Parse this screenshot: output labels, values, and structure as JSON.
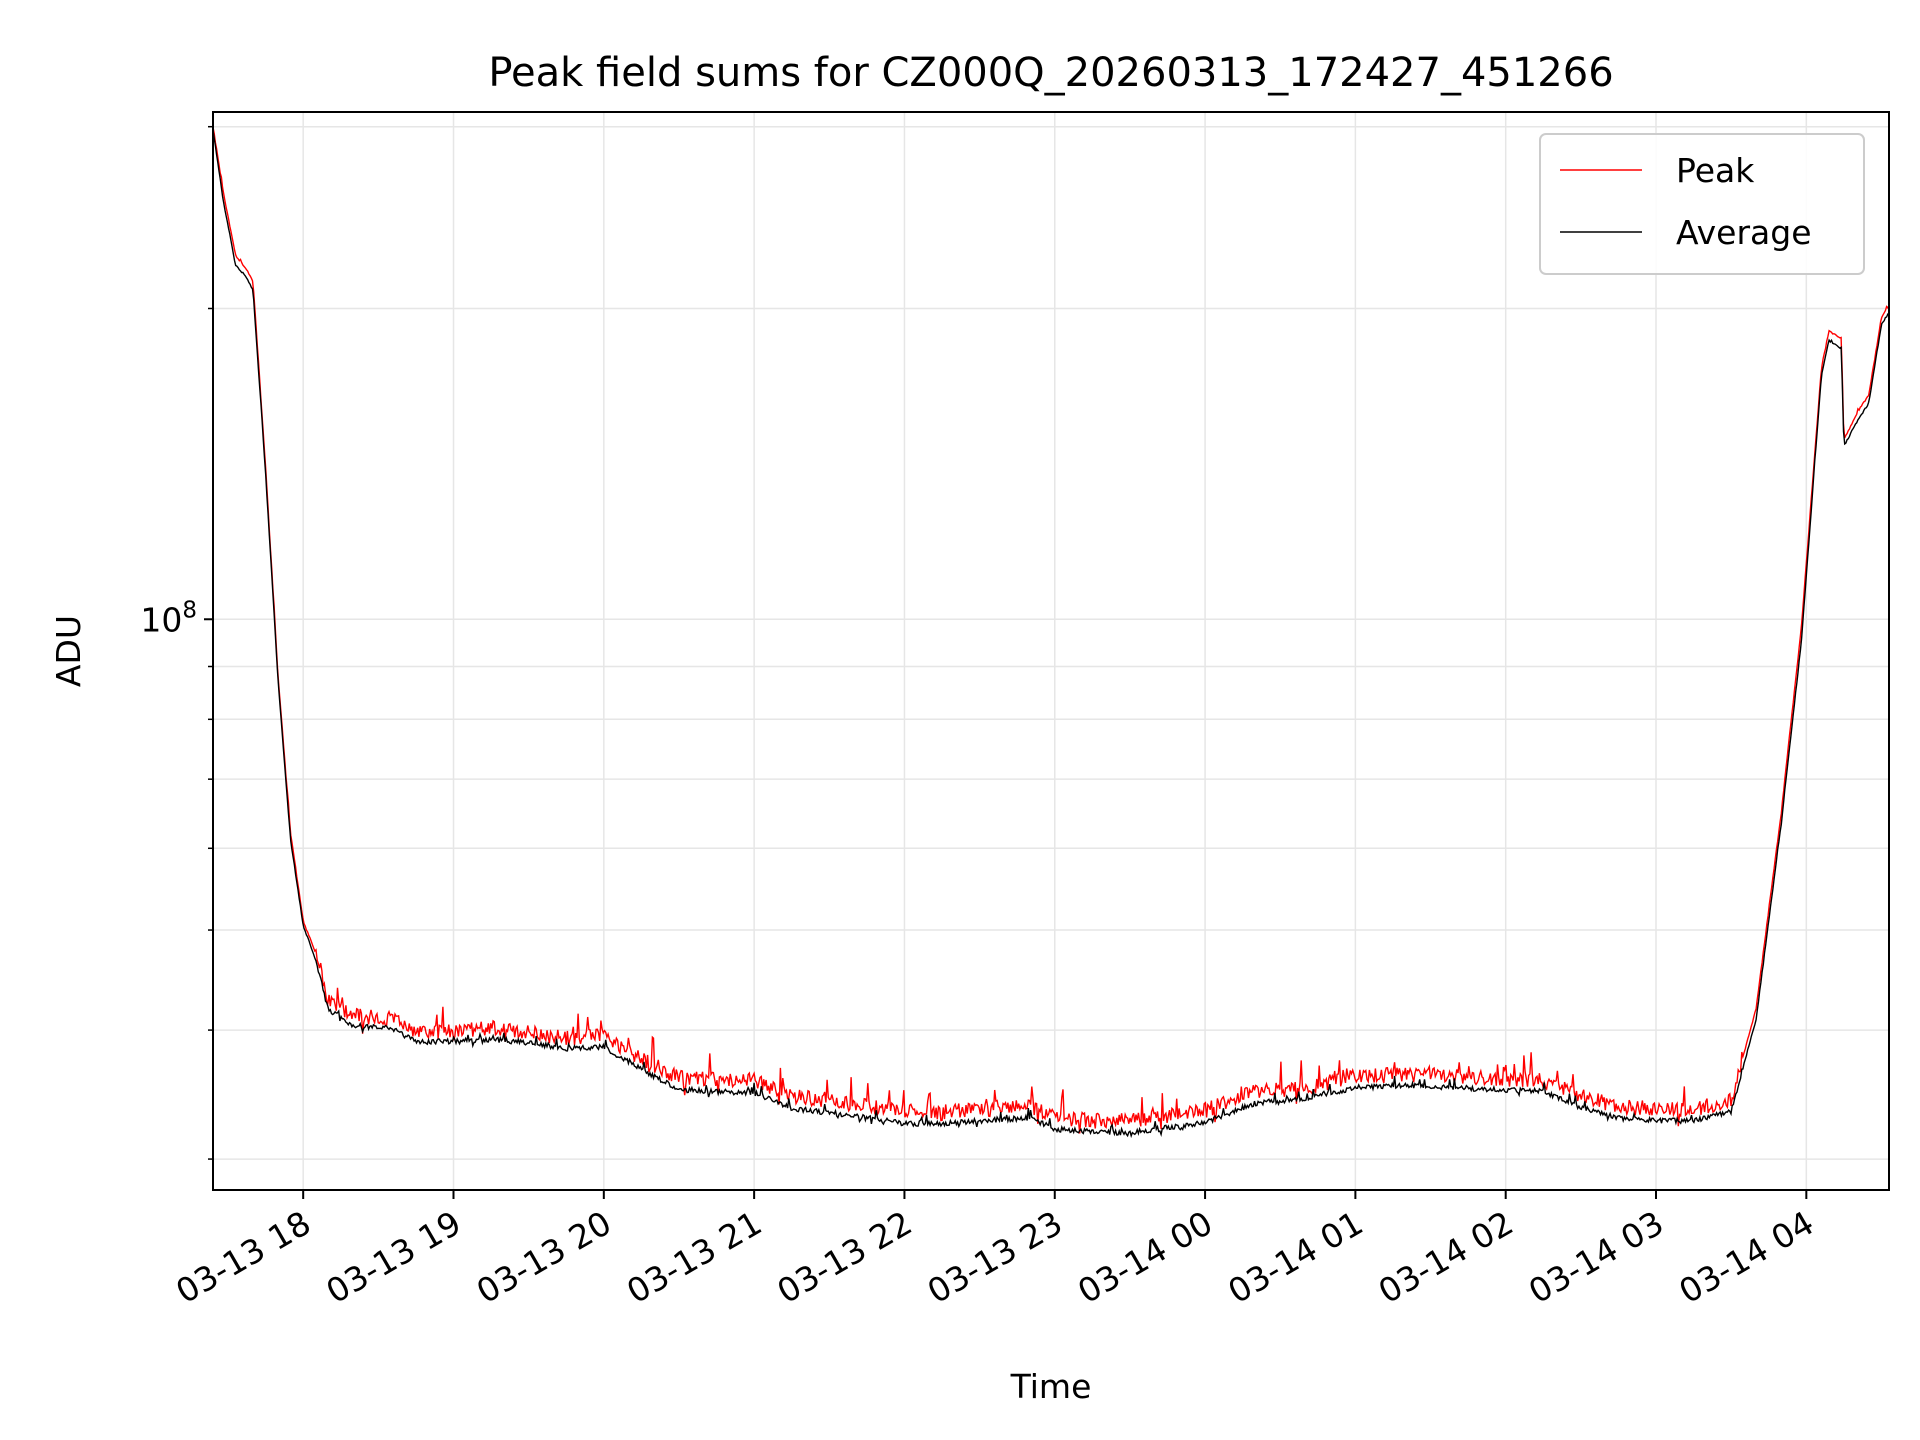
{
  "chart_data": {
    "type": "line",
    "title": "Peak field sums for CZ000Q_20260313_172427_451266",
    "xlabel": "Time",
    "ylabel": "ADU",
    "yscale": "log",
    "xlim": [
      "2026-03-13 17:24",
      "2026-03-14 04:33"
    ],
    "ylim": [
      28000000,
      310000000
    ],
    "x_ticks": [
      "03-13 18",
      "03-13 19",
      "03-13 20",
      "03-13 21",
      "03-13 22",
      "03-13 23",
      "03-14 00",
      "03-14 01",
      "03-14 02",
      "03-14 03",
      "03-14 04"
    ],
    "y_ticks": [
      {
        "value": 100000000,
        "base": "10",
        "exp": "8"
      }
    ],
    "y_minor_ticks": [
      30000000,
      40000000,
      50000000,
      60000000,
      70000000,
      80000000,
      90000000,
      200000000,
      300000000
    ],
    "grid": true,
    "legend": {
      "position": "top-right",
      "entries": [
        "Peak",
        "Average"
      ]
    },
    "colors": {
      "Peak": "#ff0000",
      "Average": "#000000",
      "grid": "#e6e6e6"
    },
    "series": [
      {
        "name": "Peak",
        "points": [
          [
            "2026-03-13 17:24",
            300000000
          ],
          [
            "2026-03-13 17:28",
            260000000
          ],
          [
            "2026-03-13 17:33",
            225000000
          ],
          [
            "2026-03-13 17:37",
            219000000
          ],
          [
            "2026-03-13 17:40",
            212000000
          ],
          [
            "2026-03-13 17:45",
            140000000
          ],
          [
            "2026-03-13 17:50",
            88000000
          ],
          [
            "2026-03-13 17:55",
            62000000
          ],
          [
            "2026-03-13 18:00",
            51000000
          ],
          [
            "2026-03-13 18:05",
            47500000
          ],
          [
            "2026-03-13 18:10",
            42500000
          ],
          [
            "2026-03-13 18:20",
            41000000
          ],
          [
            "2026-03-13 18:35",
            40700000
          ],
          [
            "2026-03-13 18:45",
            39600000
          ],
          [
            "2026-03-13 19:00",
            39600000
          ],
          [
            "2026-03-13 19:15",
            39900000
          ],
          [
            "2026-03-13 19:30",
            39500000
          ],
          [
            "2026-03-13 19:45",
            39000000
          ],
          [
            "2026-03-13 20:00",
            39200000
          ],
          [
            "2026-03-13 20:15",
            37300000
          ],
          [
            "2026-03-13 20:30",
            35700000
          ],
          [
            "2026-03-13 20:45",
            35600000
          ],
          [
            "2026-03-13 21:00",
            35500000
          ],
          [
            "2026-03-13 21:15",
            34300000
          ],
          [
            "2026-03-13 21:30",
            34000000
          ],
          [
            "2026-03-13 21:45",
            33500000
          ],
          [
            "2026-03-13 22:00",
            33100000
          ],
          [
            "2026-03-13 22:15",
            33100000
          ],
          [
            "2026-03-13 22:30",
            33300000
          ],
          [
            "2026-03-13 22:50",
            33500000
          ],
          [
            "2026-03-13 23:00",
            32700000
          ],
          [
            "2026-03-13 23:15",
            32500000
          ],
          [
            "2026-03-13 23:30",
            32400000
          ],
          [
            "2026-03-13 23:45",
            32800000
          ],
          [
            "2026-03-14 00:00",
            33200000
          ],
          [
            "2026-03-14 00:20",
            34600000
          ],
          [
            "2026-03-14 00:40",
            35000000
          ],
          [
            "2026-03-14 01:00",
            35800000
          ],
          [
            "2026-03-14 01:20",
            36000000
          ],
          [
            "2026-03-14 01:40",
            35800000
          ],
          [
            "2026-03-14 02:00",
            35600000
          ],
          [
            "2026-03-14 02:15",
            35500000
          ],
          [
            "2026-03-14 02:30",
            34300000
          ],
          [
            "2026-03-14 02:45",
            33500000
          ],
          [
            "2026-03-14 03:00",
            33300000
          ],
          [
            "2026-03-14 03:15",
            33300000
          ],
          [
            "2026-03-14 03:30",
            34000000
          ],
          [
            "2026-03-14 03:40",
            42000000
          ],
          [
            "2026-03-14 03:50",
            65000000
          ],
          [
            "2026-03-14 03:58",
            98000000
          ],
          [
            "2026-03-14 04:06",
            175000000
          ],
          [
            "2026-03-14 04:09",
            190000000
          ],
          [
            "2026-03-14 04:12",
            188000000
          ],
          [
            "2026-03-14 04:14",
            187000000
          ],
          [
            "2026-03-14 04:15",
            149000000
          ],
          [
            "2026-03-14 04:20",
            158000000
          ],
          [
            "2026-03-14 04:25",
            165000000
          ],
          [
            "2026-03-14 04:30",
            196000000
          ],
          [
            "2026-03-14 04:33",
            201000000
          ]
        ]
      },
      {
        "name": "Average",
        "points": [
          [
            "2026-03-13 17:24",
            298000000
          ],
          [
            "2026-03-13 17:28",
            255000000
          ],
          [
            "2026-03-13 17:33",
            220000000
          ],
          [
            "2026-03-13 17:37",
            215000000
          ],
          [
            "2026-03-13 17:40",
            208000000
          ],
          [
            "2026-03-13 17:45",
            138000000
          ],
          [
            "2026-03-13 17:50",
            87000000
          ],
          [
            "2026-03-13 17:55",
            61000000
          ],
          [
            "2026-03-13 18:00",
            50500000
          ],
          [
            "2026-03-13 18:05",
            46700000
          ],
          [
            "2026-03-13 18:10",
            41800000
          ],
          [
            "2026-03-13 18:20",
            40300000
          ],
          [
            "2026-03-13 18:35",
            40100000
          ],
          [
            "2026-03-13 18:45",
            38900000
          ],
          [
            "2026-03-13 19:00",
            38900000
          ],
          [
            "2026-03-13 19:15",
            39100000
          ],
          [
            "2026-03-13 19:30",
            38800000
          ],
          [
            "2026-03-13 19:45",
            38300000
          ],
          [
            "2026-03-13 20:00",
            38400000
          ],
          [
            "2026-03-13 20:15",
            36600000
          ],
          [
            "2026-03-13 20:30",
            34900000
          ],
          [
            "2026-03-13 20:45",
            34800000
          ],
          [
            "2026-03-13 21:00",
            34700000
          ],
          [
            "2026-03-13 21:15",
            33500000
          ],
          [
            "2026-03-13 21:30",
            33200000
          ],
          [
            "2026-03-13 21:45",
            32800000
          ],
          [
            "2026-03-13 22:00",
            32400000
          ],
          [
            "2026-03-13 22:15",
            32400000
          ],
          [
            "2026-03-13 22:30",
            32600000
          ],
          [
            "2026-03-13 22:50",
            32800000
          ],
          [
            "2026-03-13 23:00",
            32000000
          ],
          [
            "2026-03-13 23:15",
            31800000
          ],
          [
            "2026-03-13 23:30",
            31700000
          ],
          [
            "2026-03-13 23:45",
            32100000
          ],
          [
            "2026-03-14 00:00",
            32500000
          ],
          [
            "2026-03-14 00:20",
            33900000
          ],
          [
            "2026-03-14 00:40",
            34300000
          ],
          [
            "2026-03-14 01:00",
            35100000
          ],
          [
            "2026-03-14 01:20",
            35300000
          ],
          [
            "2026-03-14 01:40",
            35100000
          ],
          [
            "2026-03-14 02:00",
            34900000
          ],
          [
            "2026-03-14 02:15",
            34800000
          ],
          [
            "2026-03-14 02:30",
            33600000
          ],
          [
            "2026-03-14 02:45",
            32800000
          ],
          [
            "2026-03-14 03:00",
            32600000
          ],
          [
            "2026-03-14 03:15",
            32600000
          ],
          [
            "2026-03-14 03:30",
            33300000
          ],
          [
            "2026-03-14 03:40",
            41000000
          ],
          [
            "2026-03-14 03:50",
            63500000
          ],
          [
            "2026-03-14 03:58",
            95000000
          ],
          [
            "2026-03-14 04:06",
            172000000
          ],
          [
            "2026-03-14 04:09",
            186000000
          ],
          [
            "2026-03-14 04:12",
            184000000
          ],
          [
            "2026-03-14 04:14",
            183000000
          ],
          [
            "2026-03-14 04:15",
            147000000
          ],
          [
            "2026-03-14 04:20",
            155000000
          ],
          [
            "2026-03-14 04:25",
            162000000
          ],
          [
            "2026-03-14 04:30",
            193000000
          ],
          [
            "2026-03-14 04:33",
            198000000
          ]
        ]
      }
    ]
  }
}
